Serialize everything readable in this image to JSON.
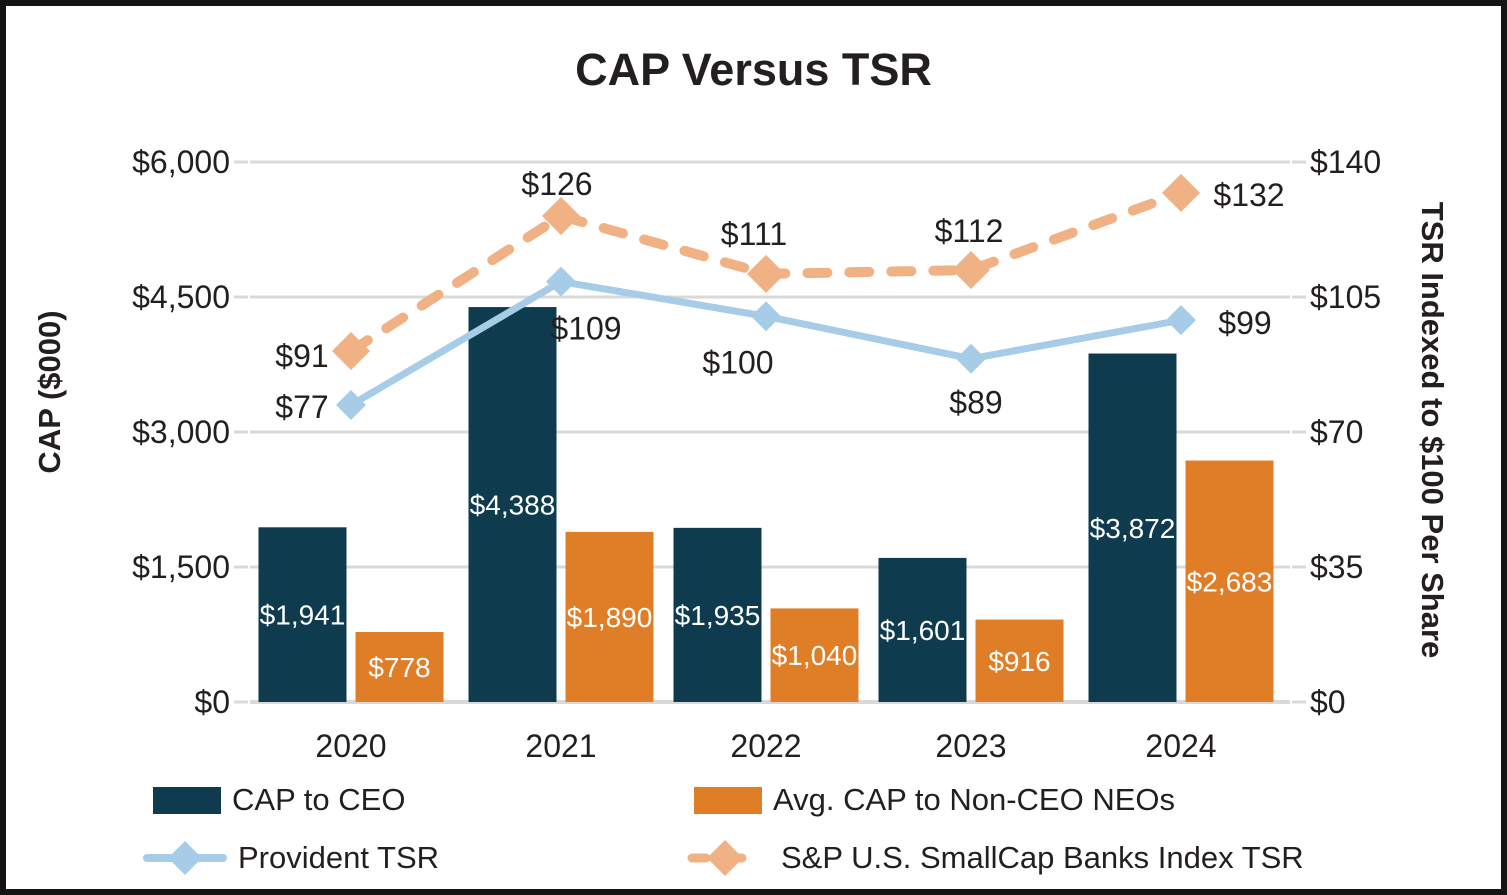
{
  "title": "CAP Versus TSR",
  "chart_data": {
    "type": "combo-bar-line",
    "categories": [
      "2020",
      "2021",
      "2022",
      "2023",
      "2024"
    ],
    "series": [
      {
        "name": "CAP to CEO",
        "type": "bar",
        "axis": "left",
        "color": "#0e3c4e",
        "values": [
          1941,
          4388,
          1935,
          1601,
          3872
        ],
        "labels": [
          "$1,941",
          "$4,388",
          "$1,935",
          "$1,601",
          "$3,872"
        ]
      },
      {
        "name": "Avg. CAP to Non-CEO NEOs",
        "type": "bar",
        "axis": "left",
        "color": "#e07e27",
        "values": [
          778,
          1890,
          1040,
          916,
          2683
        ],
        "labels": [
          "$778",
          "$1,890",
          "$1,040",
          "$916",
          "$2,683"
        ]
      },
      {
        "name": "Provident TSR",
        "type": "line",
        "axis": "right",
        "dashed": false,
        "color": "#a6cce8",
        "values": [
          77,
          109,
          100,
          89,
          99
        ],
        "labels": [
          "$77",
          "$109",
          "$100",
          "$89",
          "$99"
        ]
      },
      {
        "name": "S&P U.S. SmallCap Banks Index TSR",
        "type": "line",
        "axis": "right",
        "dashed": true,
        "color": "#f0b284",
        "values": [
          91,
          126,
          111,
          112,
          132
        ],
        "labels": [
          "$91",
          "$126",
          "$111",
          "$112",
          "$132"
        ]
      }
    ],
    "left_axis": {
      "title": "CAP ($000)",
      "max": 6000,
      "ticks": [
        0,
        1500,
        3000,
        4500,
        6000
      ],
      "tick_labels": [
        "$0",
        "$1,500",
        "$3,000",
        "$4,500",
        "$6,000"
      ]
    },
    "right_axis": {
      "title": "TSR Indexed to $100 Per Share",
      "max": 140,
      "ticks": [
        0,
        35,
        70,
        105,
        140
      ],
      "tick_labels": [
        "$0",
        "$35",
        "$70",
        "$105",
        "$140"
      ]
    },
    "grid": true,
    "legend_position": "bottom",
    "gridline_color": "#d9d9d9",
    "text_color": "#231f20"
  }
}
